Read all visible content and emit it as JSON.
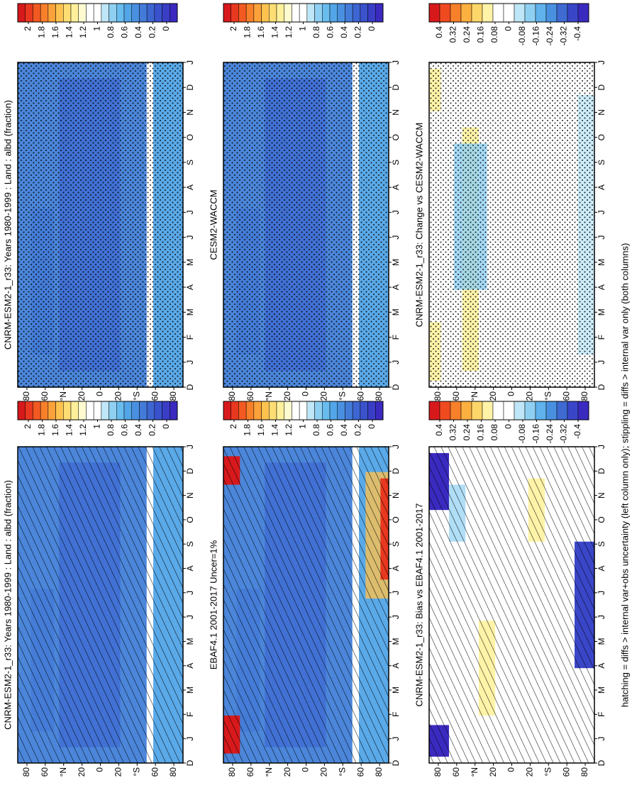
{
  "chart_data": [
    {
      "type": "contour",
      "title": "CNRM-ESM2-1_r33: Years 1980-1999 : Land : albd (fraction)",
      "categories": [
        "D",
        "J",
        "F",
        "M",
        "A",
        "M",
        "J",
        "J",
        "A",
        "S",
        "O",
        "N",
        "D",
        "J"
      ],
      "xlim": [
        90,
        -90
      ],
      "xticks": [
        {
          "value": 80,
          "label": "80"
        },
        {
          "value": 60,
          "label": "60"
        },
        {
          "value": 40,
          "label": "°N"
        },
        {
          "value": 20,
          "label": "20"
        },
        0,
        {
          "value": -20,
          "label": "20"
        },
        {
          "value": -40,
          "label": "°S"
        },
        {
          "value": -60,
          "label": "60"
        },
        {
          "value": -80,
          "label": "80"
        }
      ],
      "colorbar": {
        "ticks": [
          2,
          1.8,
          1.6,
          1.4,
          1.2,
          1,
          0.8,
          0.6,
          0.4,
          0.2,
          0
        ],
        "colors": [
          "#d7191c",
          "#e8381f",
          "#f25a22",
          "#f7802b",
          "#fba23a",
          "#fdc24f",
          "#fedd72",
          "#fff09c",
          "#fffbd0",
          "#ffffff",
          "#ffffff",
          "#bfe6f7",
          "#8fd0f2",
          "#69bcee",
          "#52a6e8",
          "#4a90e0",
          "#437bd9",
          "#3e66d2",
          "#3a52cc",
          "#3a3ec6",
          "#3a2ac0"
        ]
      },
      "overlay": "hatching"
    },
    {
      "type": "contour",
      "title": "CNRM-ESM2-1_r33: Years 1980-1999 : Land : albd (fraction)",
      "categories": [
        "D",
        "J",
        "F",
        "M",
        "A",
        "M",
        "J",
        "J",
        "A",
        "S",
        "O",
        "N",
        "D",
        "J"
      ],
      "xlim": [
        90,
        -90
      ],
      "xticks": [
        {
          "value": 80,
          "label": "80"
        },
        {
          "value": 60,
          "label": "60"
        },
        {
          "value": 40,
          "label": "°N"
        },
        {
          "value": 20,
          "label": "20"
        },
        0,
        {
          "value": -20,
          "label": "20"
        },
        {
          "value": -40,
          "label": "°S"
        },
        {
          "value": -60,
          "label": "60"
        },
        {
          "value": -80,
          "label": "80"
        }
      ],
      "colorbar": {
        "ticks": [
          2,
          1.8,
          1.6,
          1.4,
          1.2,
          1,
          0.8,
          0.6,
          0.4,
          0.2,
          0
        ],
        "colors": [
          "#d7191c",
          "#e8381f",
          "#f25a22",
          "#f7802b",
          "#fba23a",
          "#fdc24f",
          "#fedd72",
          "#fff09c",
          "#fffbd0",
          "#ffffff",
          "#ffffff",
          "#bfe6f7",
          "#8fd0f2",
          "#69bcee",
          "#52a6e8",
          "#4a90e0",
          "#437bd9",
          "#3e66d2",
          "#3a52cc",
          "#3a3ec6",
          "#3a2ac0"
        ]
      },
      "overlay": "stippling"
    },
    {
      "type": "contour",
      "title": "EBAF4.1 2001-2017 Uncer=1%",
      "categories": [
        "D",
        "J",
        "F",
        "M",
        "A",
        "M",
        "J",
        "J",
        "A",
        "S",
        "O",
        "N",
        "D",
        "J"
      ],
      "xlim": [
        90,
        -90
      ],
      "xticks": [
        {
          "value": 80,
          "label": "80"
        },
        {
          "value": 60,
          "label": "60"
        },
        {
          "value": 40,
          "label": "°N"
        },
        {
          "value": 20,
          "label": "20"
        },
        0,
        {
          "value": -20,
          "label": "20"
        },
        {
          "value": -40,
          "label": "°S"
        },
        {
          "value": -60,
          "label": "60"
        },
        {
          "value": -80,
          "label": "80"
        }
      ],
      "colorbar": {
        "ticks": [
          2,
          1.8,
          1.6,
          1.4,
          1.2,
          1,
          0.8,
          0.6,
          0.4,
          0.2,
          0
        ],
        "colors": [
          "#d7191c",
          "#e8381f",
          "#f25a22",
          "#f7802b",
          "#fba23a",
          "#fdc24f",
          "#fedd72",
          "#fff09c",
          "#fffbd0",
          "#ffffff",
          "#ffffff",
          "#bfe6f7",
          "#8fd0f2",
          "#69bcee",
          "#52a6e8",
          "#4a90e0",
          "#437bd9",
          "#3e66d2",
          "#3a52cc",
          "#3a3ec6",
          "#3a2ac0"
        ]
      },
      "overlay": "hatching"
    },
    {
      "type": "contour",
      "title": "CESM2-WACCM",
      "categories": [
        "D",
        "J",
        "F",
        "M",
        "A",
        "M",
        "J",
        "J",
        "A",
        "S",
        "O",
        "N",
        "D",
        "J"
      ],
      "xlim": [
        90,
        -90
      ],
      "xticks": [
        {
          "value": 80,
          "label": "80"
        },
        {
          "value": 60,
          "label": "60"
        },
        {
          "value": 40,
          "label": "°N"
        },
        {
          "value": 20,
          "label": "20"
        },
        0,
        {
          "value": -20,
          "label": "20"
        },
        {
          "value": -40,
          "label": "°S"
        },
        {
          "value": -60,
          "label": "60"
        },
        {
          "value": -80,
          "label": "80"
        }
      ],
      "colorbar": {
        "ticks": [
          2,
          1.8,
          1.6,
          1.4,
          1.2,
          1,
          0.8,
          0.6,
          0.4,
          0.2,
          0
        ],
        "colors": [
          "#d7191c",
          "#e8381f",
          "#f25a22",
          "#f7802b",
          "#fba23a",
          "#fdc24f",
          "#fedd72",
          "#fff09c",
          "#fffbd0",
          "#ffffff",
          "#ffffff",
          "#bfe6f7",
          "#8fd0f2",
          "#69bcee",
          "#52a6e8",
          "#4a90e0",
          "#437bd9",
          "#3e66d2",
          "#3a52cc",
          "#3a3ec6",
          "#3a2ac0"
        ]
      },
      "overlay": "stippling"
    },
    {
      "type": "contour",
      "title": "CNRM-ESM2-1_r33: Bias vs EBAF4.1 2001-2017",
      "categories": [
        "D",
        "J",
        "F",
        "M",
        "A",
        "M",
        "J",
        "J",
        "A",
        "S",
        "O",
        "N",
        "D",
        "J"
      ],
      "xlim": [
        90,
        -90
      ],
      "xticks": [
        {
          "value": 80,
          "label": "80"
        },
        {
          "value": 60,
          "label": "60"
        },
        {
          "value": 40,
          "label": "°N"
        },
        {
          "value": 20,
          "label": "20"
        },
        0,
        {
          "value": -20,
          "label": "20"
        },
        {
          "value": -40,
          "label": "°S"
        },
        {
          "value": -60,
          "label": "60"
        },
        {
          "value": -80,
          "label": "80"
        }
      ],
      "colorbar": {
        "ticks": [
          0.4,
          0.32,
          0.24,
          0.16,
          0.08,
          0,
          -0.08,
          -0.16,
          -0.24,
          -0.32,
          -0.4
        ],
        "colors": [
          "#d7191c",
          "#f04a20",
          "#f7802b",
          "#fbb040",
          "#fdd66a",
          "#fff3a8",
          "#ffffff",
          "#ffffff",
          "#bfe6f7",
          "#8fd0f2",
          "#5fb2ec",
          "#4a90e0",
          "#3e6ad2",
          "#3a46c8",
          "#3a2ac0"
        ]
      },
      "overlay": "hatching"
    },
    {
      "type": "contour",
      "title": "CNRM-ESM2-1_r33: Change vs CESM2-WACCM",
      "categories": [
        "D",
        "J",
        "F",
        "M",
        "A",
        "M",
        "J",
        "J",
        "A",
        "S",
        "O",
        "N",
        "D",
        "J"
      ],
      "xlim": [
        90,
        -90
      ],
      "xticks": [
        {
          "value": 80,
          "label": "80"
        },
        {
          "value": 60,
          "label": "60"
        },
        {
          "value": 40,
          "label": "°N"
        },
        {
          "value": 20,
          "label": "20"
        },
        0,
        {
          "value": -20,
          "label": "20"
        },
        {
          "value": -40,
          "label": "°S"
        },
        {
          "value": -60,
          "label": "60"
        },
        {
          "value": -80,
          "label": "80"
        }
      ],
      "colorbar": {
        "ticks": [
          0.4,
          0.32,
          0.24,
          0.16,
          0.08,
          0,
          -0.08,
          -0.16,
          -0.24,
          -0.32,
          -0.4
        ],
        "colors": [
          "#d7191c",
          "#f04a20",
          "#f7802b",
          "#fbb040",
          "#fdd66a",
          "#fff3a8",
          "#ffffff",
          "#ffffff",
          "#bfe6f7",
          "#8fd0f2",
          "#5fb2ec",
          "#4a90e0",
          "#3e6ad2",
          "#3a46c8",
          "#3a2ac0"
        ]
      },
      "overlay": "stippling"
    }
  ],
  "footnote": "hatching = diffs > internal var+obs uncertainty (left column only); stippling = diffs > internal var only (both columns)"
}
